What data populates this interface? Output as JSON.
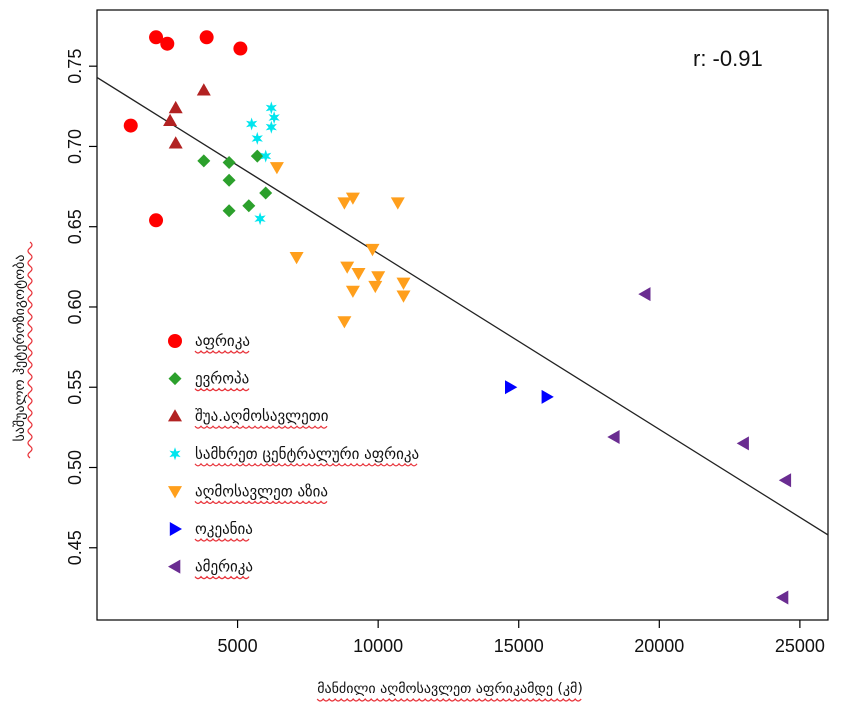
{
  "chart_data": {
    "type": "scatter",
    "title": "",
    "xlabel": "მანძილი  აღმოსავლეთ  აფრიკამდე  (კმ)",
    "ylabel": "საშუალო ჰეტეროზიგოტობა",
    "xlim": [
      0,
      26000
    ],
    "ylim": [
      0.405,
      0.785
    ],
    "xticks": [
      5000,
      10000,
      15000,
      20000,
      25000
    ],
    "yticks": [
      0.45,
      0.5,
      0.55,
      0.6,
      0.65,
      0.7,
      0.75
    ],
    "annotation": "r: -0.91",
    "grid": false,
    "legend_position": "left",
    "regression_line": {
      "x": [
        0,
        26000
      ],
      "y": [
        0.743,
        0.458
      ],
      "color": "#222222"
    },
    "series": [
      {
        "name": "აფრიკა",
        "marker": "circle",
        "color": "#ff0000",
        "x": [
          1200,
          2100,
          2500,
          3900,
          5100,
          2100
        ],
        "y": [
          0.713,
          0.768,
          0.764,
          0.768,
          0.761,
          0.654
        ]
      },
      {
        "name": "ევროპა",
        "marker": "diamond",
        "color": "#2ca02c",
        "x": [
          3800,
          4700,
          5700,
          4700,
          6000,
          5400,
          4700
        ],
        "y": [
          0.691,
          0.69,
          0.694,
          0.679,
          0.671,
          0.663,
          0.66
        ]
      },
      {
        "name": "შუა.აღმოსავლეთი",
        "marker": "triangle-up",
        "color": "#b22222",
        "x": [
          2800,
          2600,
          2800,
          3800
        ],
        "y": [
          0.724,
          0.716,
          0.702,
          0.735
        ]
      },
      {
        "name": "სამხრეთ ცენტრალური აფრიკა",
        "marker": "star",
        "color": "#00e5ee",
        "x": [
          5500,
          5700,
          6000,
          6200,
          6200,
          6300,
          5800
        ],
        "y": [
          0.714,
          0.705,
          0.694,
          0.724,
          0.712,
          0.718,
          0.655
        ]
      },
      {
        "name": "აღმოსავლეთ აზია",
        "marker": "triangle-down",
        "color": "#ff9f1c",
        "x": [
          6400,
          7100,
          8800,
          9100,
          10700,
          9800,
          8900,
          9300,
          10000,
          10900,
          10900,
          9100,
          9900,
          8800
        ],
        "y": [
          0.687,
          0.631,
          0.665,
          0.668,
          0.665,
          0.636,
          0.625,
          0.621,
          0.619,
          0.615,
          0.607,
          0.61,
          0.613,
          0.591
        ]
      },
      {
        "name": "ოკეანია",
        "marker": "triangle-right",
        "color": "#0000ff",
        "x": [
          14700,
          16000
        ],
        "y": [
          0.55,
          0.544
        ]
      },
      {
        "name": "ამერიკა",
        "marker": "triangle-left",
        "color": "#6a2c91",
        "x": [
          19500,
          18400,
          23000,
          24500,
          24400
        ],
        "y": [
          0.608,
          0.519,
          0.515,
          0.492,
          0.419
        ]
      }
    ]
  }
}
